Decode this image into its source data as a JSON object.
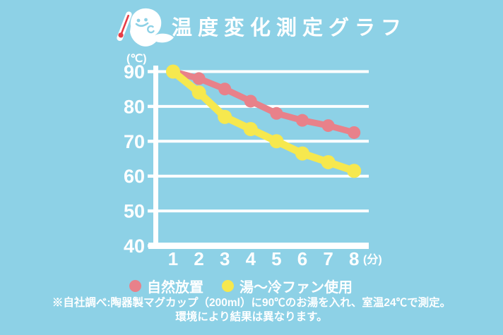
{
  "header": {
    "title": "温度変化測定グラフ",
    "icon": "ghost-with-thermometer"
  },
  "chart_data": {
    "type": "line",
    "title": "温度変化測定グラフ",
    "x": [
      1,
      2,
      3,
      4,
      5,
      6,
      7,
      8
    ],
    "x_unit": "(分)",
    "y_unit": "(℃)",
    "yticks": [
      90,
      80,
      70,
      60,
      50,
      40
    ],
    "ylim": [
      40,
      90
    ],
    "grid": "horizontal-white",
    "legend_position": "bottom",
    "series": [
      {
        "name": "自然放置",
        "color": "#e8818a",
        "line_width": 9,
        "marker_radius": 9,
        "values": [
          90,
          88,
          85,
          81.5,
          78,
          76,
          74.5,
          72.5
        ]
      },
      {
        "name": "湯〜冷ファン使用",
        "color": "#f6e84e",
        "line_width": 10.5,
        "marker_radius": 10,
        "values": [
          90,
          84,
          77,
          73.5,
          70,
          66.5,
          64,
          61.5
        ]
      }
    ]
  },
  "footer": {
    "line1": "※自社調べ:陶器製マグカップ（200ml）に90℃のお湯を入れ、室温24℃で測定。",
    "line2": "環境により結果は異なります。"
  },
  "colors": {
    "background": "#8dd1e6",
    "foreground": "#ffffff",
    "series_natural": "#e8818a",
    "series_fan": "#f6e84e",
    "thermometer_red": "#e63c45"
  }
}
